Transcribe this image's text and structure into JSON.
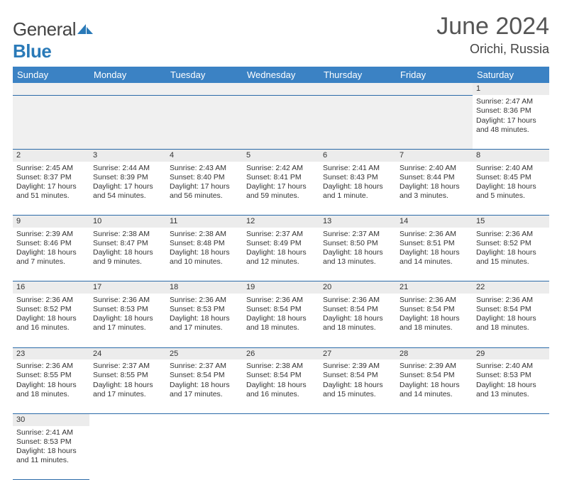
{
  "brand": {
    "text1": "General",
    "text2": "Blue"
  },
  "title": "June 2024",
  "location": "Orichi, Russia",
  "colors": {
    "header_bg": "#3b82c4",
    "header_text": "#ffffff",
    "daynum_bg": "#ececec",
    "border": "#2a6aa8",
    "logo_blue": "#2a7ab8"
  },
  "weekdays": [
    "Sunday",
    "Monday",
    "Tuesday",
    "Wednesday",
    "Thursday",
    "Friday",
    "Saturday"
  ],
  "weeks": [
    [
      null,
      null,
      null,
      null,
      null,
      null,
      {
        "n": "1",
        "sr": "2:47 AM",
        "ss": "8:36 PM",
        "dl": "17 hours and 48 minutes."
      }
    ],
    [
      {
        "n": "2",
        "sr": "2:45 AM",
        "ss": "8:37 PM",
        "dl": "17 hours and 51 minutes."
      },
      {
        "n": "3",
        "sr": "2:44 AM",
        "ss": "8:39 PM",
        "dl": "17 hours and 54 minutes."
      },
      {
        "n": "4",
        "sr": "2:43 AM",
        "ss": "8:40 PM",
        "dl": "17 hours and 56 minutes."
      },
      {
        "n": "5",
        "sr": "2:42 AM",
        "ss": "8:41 PM",
        "dl": "17 hours and 59 minutes."
      },
      {
        "n": "6",
        "sr": "2:41 AM",
        "ss": "8:43 PM",
        "dl": "18 hours and 1 minute."
      },
      {
        "n": "7",
        "sr": "2:40 AM",
        "ss": "8:44 PM",
        "dl": "18 hours and 3 minutes."
      },
      {
        "n": "8",
        "sr": "2:40 AM",
        "ss": "8:45 PM",
        "dl": "18 hours and 5 minutes."
      }
    ],
    [
      {
        "n": "9",
        "sr": "2:39 AM",
        "ss": "8:46 PM",
        "dl": "18 hours and 7 minutes."
      },
      {
        "n": "10",
        "sr": "2:38 AM",
        "ss": "8:47 PM",
        "dl": "18 hours and 9 minutes."
      },
      {
        "n": "11",
        "sr": "2:38 AM",
        "ss": "8:48 PM",
        "dl": "18 hours and 10 minutes."
      },
      {
        "n": "12",
        "sr": "2:37 AM",
        "ss": "8:49 PM",
        "dl": "18 hours and 12 minutes."
      },
      {
        "n": "13",
        "sr": "2:37 AM",
        "ss": "8:50 PM",
        "dl": "18 hours and 13 minutes."
      },
      {
        "n": "14",
        "sr": "2:36 AM",
        "ss": "8:51 PM",
        "dl": "18 hours and 14 minutes."
      },
      {
        "n": "15",
        "sr": "2:36 AM",
        "ss": "8:52 PM",
        "dl": "18 hours and 15 minutes."
      }
    ],
    [
      {
        "n": "16",
        "sr": "2:36 AM",
        "ss": "8:52 PM",
        "dl": "18 hours and 16 minutes."
      },
      {
        "n": "17",
        "sr": "2:36 AM",
        "ss": "8:53 PM",
        "dl": "18 hours and 17 minutes."
      },
      {
        "n": "18",
        "sr": "2:36 AM",
        "ss": "8:53 PM",
        "dl": "18 hours and 17 minutes."
      },
      {
        "n": "19",
        "sr": "2:36 AM",
        "ss": "8:54 PM",
        "dl": "18 hours and 18 minutes."
      },
      {
        "n": "20",
        "sr": "2:36 AM",
        "ss": "8:54 PM",
        "dl": "18 hours and 18 minutes."
      },
      {
        "n": "21",
        "sr": "2:36 AM",
        "ss": "8:54 PM",
        "dl": "18 hours and 18 minutes."
      },
      {
        "n": "22",
        "sr": "2:36 AM",
        "ss": "8:54 PM",
        "dl": "18 hours and 18 minutes."
      }
    ],
    [
      {
        "n": "23",
        "sr": "2:36 AM",
        "ss": "8:55 PM",
        "dl": "18 hours and 18 minutes."
      },
      {
        "n": "24",
        "sr": "2:37 AM",
        "ss": "8:55 PM",
        "dl": "18 hours and 17 minutes."
      },
      {
        "n": "25",
        "sr": "2:37 AM",
        "ss": "8:54 PM",
        "dl": "18 hours and 17 minutes."
      },
      {
        "n": "26",
        "sr": "2:38 AM",
        "ss": "8:54 PM",
        "dl": "18 hours and 16 minutes."
      },
      {
        "n": "27",
        "sr": "2:39 AM",
        "ss": "8:54 PM",
        "dl": "18 hours and 15 minutes."
      },
      {
        "n": "28",
        "sr": "2:39 AM",
        "ss": "8:54 PM",
        "dl": "18 hours and 14 minutes."
      },
      {
        "n": "29",
        "sr": "2:40 AM",
        "ss": "8:53 PM",
        "dl": "18 hours and 13 minutes."
      }
    ],
    [
      {
        "n": "30",
        "sr": "2:41 AM",
        "ss": "8:53 PM",
        "dl": "18 hours and 11 minutes."
      },
      null,
      null,
      null,
      null,
      null,
      null
    ]
  ],
  "labels": {
    "sunrise": "Sunrise:",
    "sunset": "Sunset:",
    "daylight": "Daylight:"
  }
}
